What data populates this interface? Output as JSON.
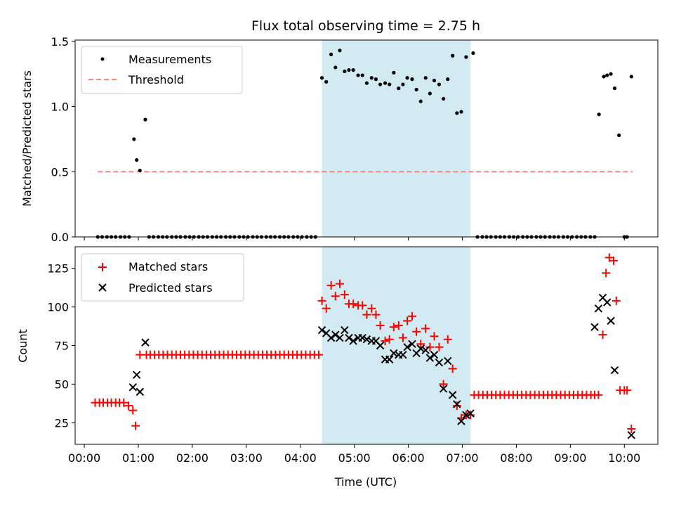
{
  "title": "Flux total observing time = 2.75 h",
  "colors": {
    "measurement": "#000000",
    "threshold": "#ff8080",
    "matched": "#ff0000",
    "predicted": "#000000",
    "shade": "#add8e6"
  },
  "chart_data": [
    {
      "type": "scatter",
      "ylabel": "Matched/Predicted stars",
      "xlabel": "",
      "xlim": [
        -0.17,
        10.62
      ],
      "ylim": [
        0,
        1.51
      ],
      "yticks": [
        0.0,
        0.5,
        1.0,
        1.5
      ],
      "ytick_labels": [
        "0.0",
        "0.5",
        "1.0",
        "1.5"
      ],
      "legend": {
        "position": "top-left",
        "entries": [
          "Measurements",
          "Threshold"
        ]
      },
      "shaded_span": [
        4.4,
        7.15
      ],
      "threshold": {
        "value": 0.5,
        "x_range": [
          0.25,
          10.15
        ]
      },
      "series": [
        {
          "name": "Measurements",
          "x": [
            0.25,
            0.33,
            0.42,
            0.5,
            0.58,
            0.67,
            0.75,
            0.83,
            0.92,
            0.97,
            1.03,
            1.13,
            1.2,
            1.28,
            1.37,
            1.45,
            1.53,
            1.62,
            1.7,
            1.78,
            1.87,
            1.95,
            2.03,
            2.12,
            2.2,
            2.28,
            2.37,
            2.45,
            2.53,
            2.62,
            2.7,
            2.78,
            2.87,
            2.95,
            3.03,
            3.12,
            3.2,
            3.28,
            3.37,
            3.45,
            3.53,
            3.62,
            3.7,
            3.78,
            3.87,
            3.95,
            4.03,
            4.12,
            4.2,
            4.28,
            4.4,
            4.48,
            4.57,
            4.65,
            4.73,
            4.82,
            4.9,
            4.98,
            5.07,
            5.15,
            5.23,
            5.32,
            5.4,
            5.48,
            5.57,
            5.65,
            5.73,
            5.82,
            5.9,
            5.98,
            6.07,
            6.15,
            6.23,
            6.32,
            6.4,
            6.48,
            6.57,
            6.65,
            6.73,
            6.82,
            6.9,
            6.98,
            7.07,
            7.2,
            7.28,
            7.37,
            7.45,
            7.53,
            7.62,
            7.7,
            7.78,
            7.87,
            7.95,
            8.03,
            8.12,
            8.2,
            8.28,
            8.37,
            8.45,
            8.53,
            8.62,
            8.7,
            8.78,
            8.87,
            8.95,
            9.03,
            9.12,
            9.2,
            9.28,
            9.37,
            9.45,
            9.53,
            9.62,
            9.68,
            9.75,
            9.82,
            9.9,
            10.0,
            10.05,
            10.13
          ],
          "y": [
            0,
            0,
            0,
            0,
            0,
            0,
            0,
            0,
            0.75,
            0.59,
            0.51,
            0.9,
            0,
            0,
            0,
            0,
            0,
            0,
            0,
            0,
            0,
            0,
            0,
            0,
            0,
            0,
            0,
            0,
            0,
            0,
            0,
            0,
            0,
            0,
            0,
            0,
            0,
            0,
            0,
            0,
            0,
            0,
            0,
            0,
            0,
            0,
            0,
            0,
            0,
            0,
            1.22,
            1.19,
            1.4,
            1.3,
            1.43,
            1.27,
            1.28,
            1.28,
            1.24,
            1.24,
            1.18,
            1.22,
            1.21,
            1.17,
            1.18,
            1.17,
            1.26,
            1.14,
            1.17,
            1.22,
            1.21,
            1.13,
            1.04,
            1.22,
            1.1,
            1.2,
            1.17,
            1.06,
            1.21,
            1.39,
            0.95,
            0.96,
            1.38,
            1.41,
            0,
            0,
            0,
            0,
            0,
            0,
            0,
            0,
            0,
            0,
            0,
            0,
            0,
            0,
            0,
            0,
            0,
            0,
            0,
            0,
            0,
            0,
            0,
            0,
            0,
            0,
            0,
            0.94,
            1.23,
            1.24,
            1.25,
            1.14,
            0.78,
            0,
            0,
            1.23
          ]
        }
      ]
    },
    {
      "type": "scatter",
      "ylabel": "Count",
      "xlabel": "Time (UTC)",
      "xlim": [
        -0.17,
        10.62
      ],
      "ylim": [
        11,
        139
      ],
      "yticks": [
        25,
        50,
        75,
        100,
        125
      ],
      "ytick_labels": [
        "25",
        "50",
        "75",
        "100",
        "125"
      ],
      "xticks": [
        0,
        1,
        2,
        3,
        4,
        5,
        6,
        7,
        8,
        9,
        10
      ],
      "xtick_labels": [
        "00:00",
        "01:00",
        "02:00",
        "03:00",
        "04:00",
        "05:00",
        "06:00",
        "07:00",
        "08:00",
        "09:00",
        "10:00"
      ],
      "legend": {
        "position": "top-left",
        "entries": [
          "Matched stars",
          "Predicted stars"
        ]
      },
      "shaded_span": [
        4.4,
        7.15
      ],
      "series": [
        {
          "name": "Matched stars",
          "x": [
            0.2,
            0.28,
            0.35,
            0.43,
            0.5,
            0.58,
            0.65,
            0.73,
            0.82,
            0.9,
            0.95,
            1.03,
            1.15,
            1.22,
            1.3,
            1.38,
            1.46,
            1.54,
            1.62,
            1.7,
            1.78,
            1.86,
            1.94,
            2.02,
            2.1,
            2.18,
            2.26,
            2.34,
            2.42,
            2.5,
            2.58,
            2.66,
            2.74,
            2.82,
            2.9,
            2.98,
            3.06,
            3.14,
            3.22,
            3.3,
            3.38,
            3.46,
            3.54,
            3.62,
            3.7,
            3.78,
            3.86,
            3.94,
            4.02,
            4.1,
            4.18,
            4.26,
            4.34,
            4.4,
            4.48,
            4.57,
            4.65,
            4.73,
            4.82,
            4.9,
            4.98,
            5.07,
            5.15,
            5.23,
            5.32,
            5.4,
            5.48,
            5.57,
            5.65,
            5.73,
            5.82,
            5.9,
            5.98,
            6.07,
            6.15,
            6.23,
            6.32,
            6.4,
            6.48,
            6.57,
            6.65,
            6.73,
            6.82,
            6.9,
            6.98,
            7.07,
            7.15,
            7.22,
            7.3,
            7.38,
            7.46,
            7.54,
            7.62,
            7.7,
            7.78,
            7.86,
            7.94,
            8.02,
            8.1,
            8.18,
            8.26,
            8.34,
            8.42,
            8.5,
            8.58,
            8.66,
            8.74,
            8.82,
            8.9,
            8.98,
            9.06,
            9.14,
            9.22,
            9.3,
            9.38,
            9.45,
            9.52,
            9.6,
            9.66,
            9.72,
            9.8,
            9.85,
            9.92,
            10.0,
            10.05,
            10.13
          ],
          "y": [
            38,
            38,
            38,
            38,
            38,
            38,
            38,
            38,
            36,
            33,
            23,
            69,
            69,
            69,
            69,
            69,
            69,
            69,
            69,
            69,
            69,
            69,
            69,
            69,
            69,
            69,
            69,
            69,
            69,
            69,
            69,
            69,
            69,
            69,
            69,
            69,
            69,
            69,
            69,
            69,
            69,
            69,
            69,
            69,
            69,
            69,
            69,
            69,
            69,
            69,
            69,
            69,
            69,
            104,
            99,
            114,
            107,
            115,
            108,
            102,
            102,
            101,
            101,
            95,
            99,
            95,
            88,
            78,
            79,
            87,
            88,
            80,
            91,
            94,
            84,
            76,
            86,
            74,
            81,
            74,
            50,
            79,
            60,
            36,
            28,
            30,
            30,
            43,
            43,
            43,
            43,
            43,
            43,
            43,
            43,
            43,
            43,
            43,
            43,
            43,
            43,
            43,
            43,
            43,
            43,
            43,
            43,
            43,
            43,
            43,
            43,
            43,
            43,
            43,
            43,
            43,
            43,
            82,
            122,
            132,
            130,
            104,
            46,
            46,
            46,
            21
          ]
        },
        {
          "name": "Predicted stars",
          "x": [
            0.9,
            0.97,
            1.03,
            1.13,
            4.4,
            4.48,
            4.57,
            4.65,
            4.73,
            4.82,
            4.9,
            4.98,
            5.07,
            5.15,
            5.23,
            5.32,
            5.4,
            5.48,
            5.57,
            5.65,
            5.73,
            5.82,
            5.9,
            5.98,
            6.07,
            6.15,
            6.23,
            6.32,
            6.4,
            6.48,
            6.57,
            6.65,
            6.73,
            6.82,
            6.9,
            6.98,
            7.07,
            7.15,
            9.45,
            9.52,
            9.6,
            9.68,
            9.75,
            9.82,
            10.13
          ],
          "y": [
            48,
            56,
            45,
            77,
            85,
            83,
            80,
            82,
            80,
            85,
            80,
            78,
            80,
            80,
            79,
            78,
            78,
            75,
            66,
            66,
            70,
            69,
            69,
            74,
            76,
            70,
            73,
            72,
            67,
            69,
            64,
            47,
            65,
            43,
            37,
            26,
            30,
            31,
            87,
            99,
            106,
            103,
            91,
            59,
            17
          ]
        }
      ]
    }
  ]
}
